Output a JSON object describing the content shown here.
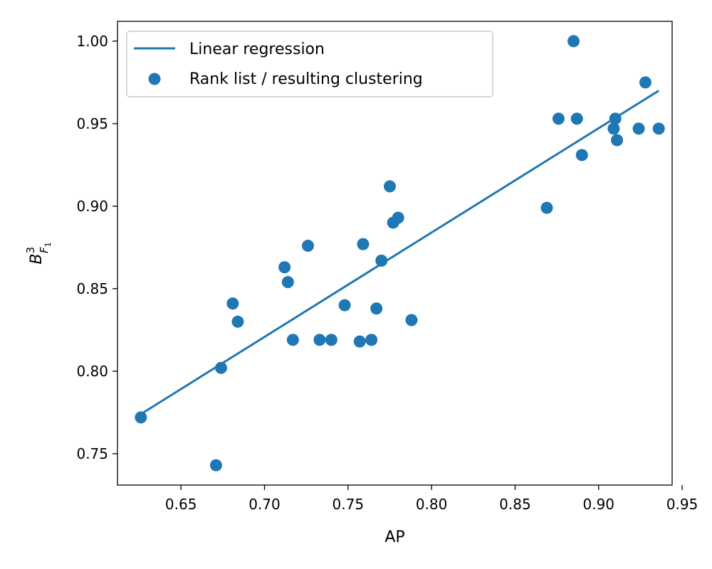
{
  "chart_data": {
    "type": "scatter",
    "title": "",
    "xlabel": "AP",
    "ylabel": "B^3_F1",
    "ylabel_parts": {
      "base": "B",
      "sup": "3",
      "sub_main": "F",
      "sub_sub": "1"
    },
    "xlim": [
      0.612,
      0.944
    ],
    "ylim": [
      0.731,
      1.012
    ],
    "xticks": [
      0.65,
      0.7,
      0.75,
      0.8,
      0.85,
      0.9,
      0.95
    ],
    "xtick_labels": [
      "0.65",
      "0.70",
      "0.75",
      "0.80",
      "0.85",
      "0.90",
      "0.95"
    ],
    "yticks": [
      0.75,
      0.8,
      0.85,
      0.9,
      0.95,
      1.0
    ],
    "ytick_labels": [
      "0.75",
      "0.80",
      "0.85",
      "0.90",
      "0.95",
      "1.00"
    ],
    "grid": false,
    "legend_position": "top-left",
    "colors": {
      "series": "#1f77b4"
    },
    "series": [
      {
        "name": "Rank list / resulting clustering",
        "kind": "scatter",
        "points": [
          [
            0.626,
            0.772
          ],
          [
            0.671,
            0.743
          ],
          [
            0.674,
            0.802
          ],
          [
            0.681,
            0.841
          ],
          [
            0.684,
            0.83
          ],
          [
            0.712,
            0.863
          ],
          [
            0.714,
            0.854
          ],
          [
            0.717,
            0.819
          ],
          [
            0.726,
            0.876
          ],
          [
            0.733,
            0.819
          ],
          [
            0.74,
            0.819
          ],
          [
            0.748,
            0.84
          ],
          [
            0.757,
            0.818
          ],
          [
            0.759,
            0.877
          ],
          [
            0.764,
            0.819
          ],
          [
            0.767,
            0.838
          ],
          [
            0.77,
            0.867
          ],
          [
            0.775,
            0.912
          ],
          [
            0.777,
            0.89
          ],
          [
            0.78,
            0.893
          ],
          [
            0.788,
            0.831
          ],
          [
            0.869,
            0.899
          ],
          [
            0.876,
            0.953
          ],
          [
            0.885,
            1.0
          ],
          [
            0.887,
            0.953
          ],
          [
            0.89,
            0.931
          ],
          [
            0.909,
            0.947
          ],
          [
            0.91,
            0.953
          ],
          [
            0.911,
            0.94
          ],
          [
            0.924,
            0.947
          ],
          [
            0.928,
            0.975
          ],
          [
            0.936,
            0.947
          ]
        ]
      },
      {
        "name": "Linear regression",
        "kind": "line",
        "points": [
          [
            0.626,
            0.774
          ],
          [
            0.936,
            0.97
          ]
        ]
      }
    ]
  }
}
